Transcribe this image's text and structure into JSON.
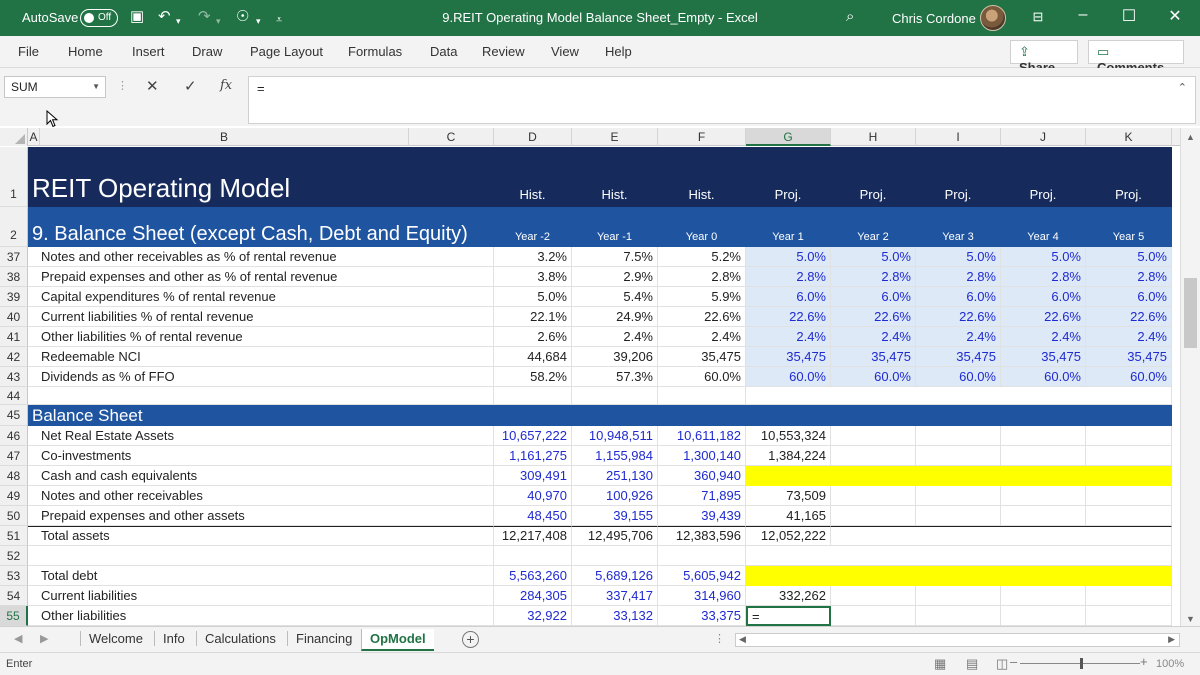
{
  "titlebar": {
    "autosave_label": "AutoSave",
    "autosave_state": "Off",
    "document_title": "9.REIT Operating Model Balance Sheet_Empty  -  Excel",
    "user_name": "Chris Cordone",
    "accent": "#217346"
  },
  "ribbon": {
    "tabs": [
      "File",
      "Home",
      "Insert",
      "Draw",
      "Page Layout",
      "Formulas",
      "Data",
      "Review",
      "View",
      "Help"
    ],
    "share": "Share",
    "comments": "Comments"
  },
  "formula_bar": {
    "name_box": "SUM",
    "fx_label": "fx",
    "formula": "="
  },
  "columns": [
    "A",
    "B",
    "C",
    "D",
    "E",
    "F",
    "G",
    "H",
    "I",
    "J",
    "K"
  ],
  "header_rows": {
    "r1": {
      "num": "1",
      "title": "REIT Operating Model",
      "cols": [
        "Hist.",
        "Hist.",
        "Hist.",
        "Proj.",
        "Proj.",
        "Proj.",
        "Proj.",
        "Proj."
      ]
    },
    "r2": {
      "num": "2",
      "title": "9. Balance Sheet (except Cash, Debt and Equity)",
      "cols": [
        "Year -2",
        "Year -1",
        "Year 0",
        "Year 1",
        "Year 2",
        "Year 3",
        "Year 4",
        "Year 5"
      ]
    }
  },
  "assumption_rows": [
    {
      "num": "37",
      "label": "Notes and other receivables as % of rental revenue",
      "hist": [
        "3.2%",
        "7.5%",
        "5.2%"
      ],
      "proj": [
        "5.0%",
        "5.0%",
        "5.0%",
        "5.0%",
        "5.0%"
      ]
    },
    {
      "num": "38",
      "label": "Prepaid expenses and other as % of rental revenue",
      "hist": [
        "3.8%",
        "2.9%",
        "2.8%"
      ],
      "proj": [
        "2.8%",
        "2.8%",
        "2.8%",
        "2.8%",
        "2.8%"
      ]
    },
    {
      "num": "39",
      "label": "Capital expenditures % of rental revenue",
      "hist": [
        "5.0%",
        "5.4%",
        "5.9%"
      ],
      "proj": [
        "6.0%",
        "6.0%",
        "6.0%",
        "6.0%",
        "6.0%"
      ]
    },
    {
      "num": "40",
      "label": "Current liabilities % of rental revenue",
      "hist": [
        "22.1%",
        "24.9%",
        "22.6%"
      ],
      "proj": [
        "22.6%",
        "22.6%",
        "22.6%",
        "22.6%",
        "22.6%"
      ]
    },
    {
      "num": "41",
      "label": "Other liabilities % of rental revenue",
      "hist": [
        "2.6%",
        "2.4%",
        "2.4%"
      ],
      "proj": [
        "2.4%",
        "2.4%",
        "2.4%",
        "2.4%",
        "2.4%"
      ]
    },
    {
      "num": "42",
      "label": "Redeemable NCI",
      "hist": [
        "44,684",
        "39,206",
        "35,475"
      ],
      "proj": [
        "35,475",
        "35,475",
        "35,475",
        "35,475",
        "35,475"
      ]
    },
    {
      "num": "43",
      "label": "Dividends as % of FFO",
      "hist": [
        "58.2%",
        "57.3%",
        "60.0%"
      ],
      "proj": [
        "60.0%",
        "60.0%",
        "60.0%",
        "60.0%",
        "60.0%"
      ]
    }
  ],
  "blank_row_44": {
    "num": "44"
  },
  "section_row": {
    "num": "45",
    "title": "Balance Sheet"
  },
  "bs_rows": [
    {
      "num": "46",
      "label": "Net Real Estate Assets",
      "hist": [
        "10,657,222",
        "10,948,511",
        "10,611,182"
      ],
      "g": "10,553,324",
      "yellow": false
    },
    {
      "num": "47",
      "label": "Co-investments",
      "hist": [
        "1,161,275",
        "1,155,984",
        "1,300,140"
      ],
      "g": "1,384,224",
      "yellow": false
    },
    {
      "num": "48",
      "label": "Cash and cash equivalents",
      "hist": [
        "309,491",
        "251,130",
        "360,940"
      ],
      "g": "",
      "yellow": true
    },
    {
      "num": "49",
      "label": "Notes and other receivables",
      "hist": [
        "40,970",
        "100,926",
        "71,895"
      ],
      "g": "73,509",
      "yellow": false
    },
    {
      "num": "50",
      "label": "Prepaid expenses and other assets",
      "hist": [
        "48,450",
        "39,155",
        "39,439"
      ],
      "g": "41,165",
      "yellow": false
    },
    {
      "num": "51",
      "label": "Total assets",
      "hist": [
        "12,217,408",
        "12,495,706",
        "12,383,596"
      ],
      "g": "12,052,222",
      "yellow": false,
      "total": true
    },
    {
      "num": "52",
      "label": "",
      "hist": [
        "",
        "",
        ""
      ],
      "g": "",
      "yellow": false
    },
    {
      "num": "53",
      "label": "Total debt",
      "hist": [
        "5,563,260",
        "5,689,126",
        "5,605,942"
      ],
      "g": "",
      "yellow": true
    },
    {
      "num": "54",
      "label": "Current liabilities",
      "hist": [
        "284,305",
        "337,417",
        "314,960"
      ],
      "g": "332,262",
      "yellow": false
    },
    {
      "num": "55",
      "label": "Other liabilities",
      "hist": [
        "32,922",
        "33,132",
        "33,375"
      ],
      "g": "=",
      "yellow": false,
      "active": true
    }
  ],
  "sheet_tabs": [
    "Welcome",
    "Info",
    "Calculations",
    "Financing",
    "OpModel"
  ],
  "active_sheet": "OpModel",
  "status": {
    "mode": "Enter",
    "zoom": "100%"
  }
}
